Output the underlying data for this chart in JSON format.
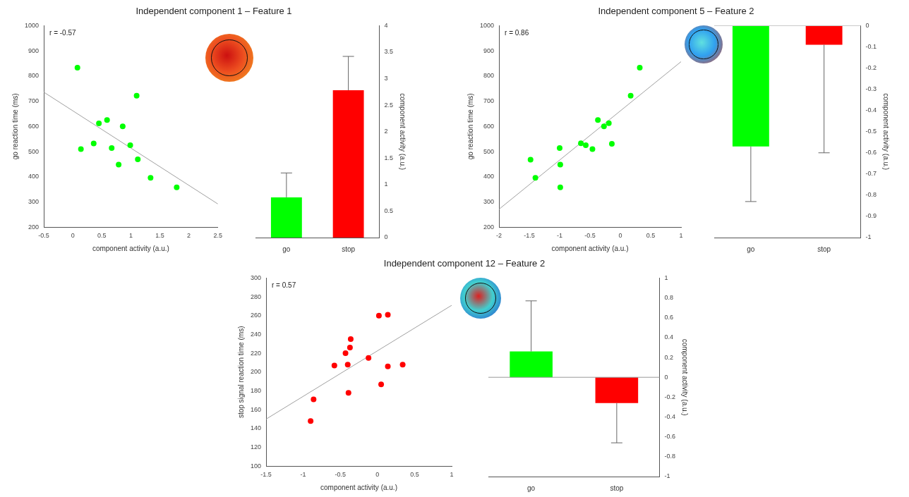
{
  "chart_data": [
    {
      "type": "scatter",
      "title": "Independent component 1 – Feature 1",
      "xlabel": "component activity (a.u.)",
      "ylabel": "go reaction time (ms)",
      "annotations": [
        "r = -0.57"
      ],
      "xlim": [
        -0.5,
        2.5
      ],
      "xticks": [
        -0.5,
        0,
        0.5,
        1,
        1.5,
        2,
        2.5
      ],
      "ylim": [
        200,
        1000
      ],
      "yticks": [
        200,
        300,
        400,
        500,
        600,
        700,
        800,
        900,
        1000
      ],
      "series": [
        {
          "type": "scatter",
          "marker": "circle",
          "color": "#00ff00",
          "x": [
            0.08,
            0.14,
            0.36,
            0.45,
            0.59,
            0.67,
            0.79,
            0.86,
            0.99,
            1.1,
            1.12,
            1.34,
            1.79
          ],
          "values": [
            833,
            510,
            532,
            612,
            625,
            514,
            448,
            600,
            525,
            722,
            469,
            396,
            358
          ]
        },
        {
          "type": "line",
          "color": "#a0a0a0",
          "x": [
            -0.5,
            2.5
          ],
          "values": [
            736,
            292
          ]
        }
      ]
    },
    {
      "type": "bar",
      "categories": [
        "go",
        "stop"
      ],
      "values": [
        0.76,
        2.78
      ],
      "colors": [
        "#00ff00",
        "#ff0000"
      ],
      "errors": [
        [
          0.76,
          1.22
        ],
        [
          2.78,
          3.42
        ]
      ],
      "ylabel": "component activity (a.u.)",
      "ylim": [
        0,
        4
      ],
      "yticks": [
        0,
        0.5,
        1,
        1.5,
        2,
        2.5,
        3,
        3.5,
        4
      ]
    },
    {
      "type": "scatter",
      "title": "Independent component 5 – Feature 2",
      "xlabel": "component activity (a.u.)",
      "ylabel": "go reaction time (ms)",
      "annotations": [
        "r = 0.86"
      ],
      "xlim": [
        -2,
        1
      ],
      "xticks": [
        -2,
        -1.5,
        -1,
        -0.5,
        0,
        0.5,
        1
      ],
      "ylim": [
        200,
        1000
      ],
      "yticks": [
        200,
        300,
        400,
        500,
        600,
        700,
        800,
        900,
        1000
      ],
      "series": [
        {
          "type": "scatter",
          "marker": "circle",
          "color": "#00ff00",
          "x": [
            -1.48,
            -1.4,
            -1,
            -0.99,
            -0.99,
            -0.65,
            -0.57,
            -0.46,
            -0.37,
            -0.27,
            -0.19,
            -0.14,
            0.17,
            0.32
          ],
          "values": [
            468,
            396,
            514,
            448,
            358,
            533,
            525,
            510,
            625,
            600,
            613,
            531,
            722,
            833
          ]
        },
        {
          "type": "line",
          "color": "#a0a0a0",
          "x": [
            -2,
            1
          ],
          "values": [
            271,
            857
          ]
        }
      ]
    },
    {
      "type": "bar",
      "categories": [
        "go",
        "stop"
      ],
      "values": [
        -0.57,
        -0.09
      ],
      "colors": [
        "#00ff00",
        "#ff0000"
      ],
      "errors": [
        [
          -0.83,
          -0.57
        ],
        [
          -0.6,
          -0.09
        ]
      ],
      "ylabel": "component activity (a.u.)",
      "ylim": [
        -1,
        0
      ],
      "yticks": [
        -1,
        -0.9,
        -0.8,
        -0.7,
        -0.6,
        -0.5,
        -0.4,
        -0.3,
        -0.2,
        -0.1,
        0
      ],
      "ref_lines": [
        {
          "axis": "y",
          "value": 0,
          "color": "#c8c8c8"
        }
      ]
    },
    {
      "type": "scatter",
      "title": "Independent component 12 – Feature 2",
      "xlabel": "component activity (a.u.)",
      "ylabel": "stop signal reaction time (ms)",
      "annotations": [
        "r = 0.57"
      ],
      "xlim": [
        -1.5,
        1
      ],
      "xticks": [
        -1.5,
        -1,
        -0.5,
        0,
        0.5,
        1
      ],
      "ylim": [
        100,
        300
      ],
      "yticks": [
        100,
        120,
        140,
        160,
        180,
        200,
        220,
        240,
        260,
        280,
        300
      ],
      "series": [
        {
          "type": "scatter",
          "marker": "circle",
          "color": "#ff0000",
          "x": [
            -0.9,
            -0.86,
            -0.58,
            -0.43,
            -0.4,
            -0.39,
            -0.37,
            -0.36,
            -0.12,
            0.02,
            0.05,
            0.14,
            0.14,
            0.34
          ],
          "values": [
            148,
            171,
            207,
            220,
            208,
            178,
            226,
            235,
            215,
            260,
            187,
            206,
            261,
            208
          ]
        },
        {
          "type": "line",
          "color": "#a0a0a0",
          "x": [
            -1.5,
            1
          ],
          "values": [
            150,
            271
          ]
        }
      ]
    },
    {
      "type": "bar",
      "categories": [
        "go",
        "stop"
      ],
      "values": [
        0.26,
        -0.26
      ],
      "colors": [
        "#00ff00",
        "#ff0000"
      ],
      "errors": [
        [
          0.26,
          0.77
        ],
        [
          -0.66,
          -0.26
        ]
      ],
      "ylabel": "component activity (a.u.)",
      "ylim": [
        -1,
        1
      ],
      "yticks": [
        -1,
        -0.8,
        -0.6,
        -0.4,
        -0.2,
        0,
        0.2,
        0.4,
        0.6,
        0.8,
        1
      ],
      "ref_lines": [
        {
          "axis": "y",
          "value": 0,
          "color": "#999999"
        }
      ]
    }
  ]
}
